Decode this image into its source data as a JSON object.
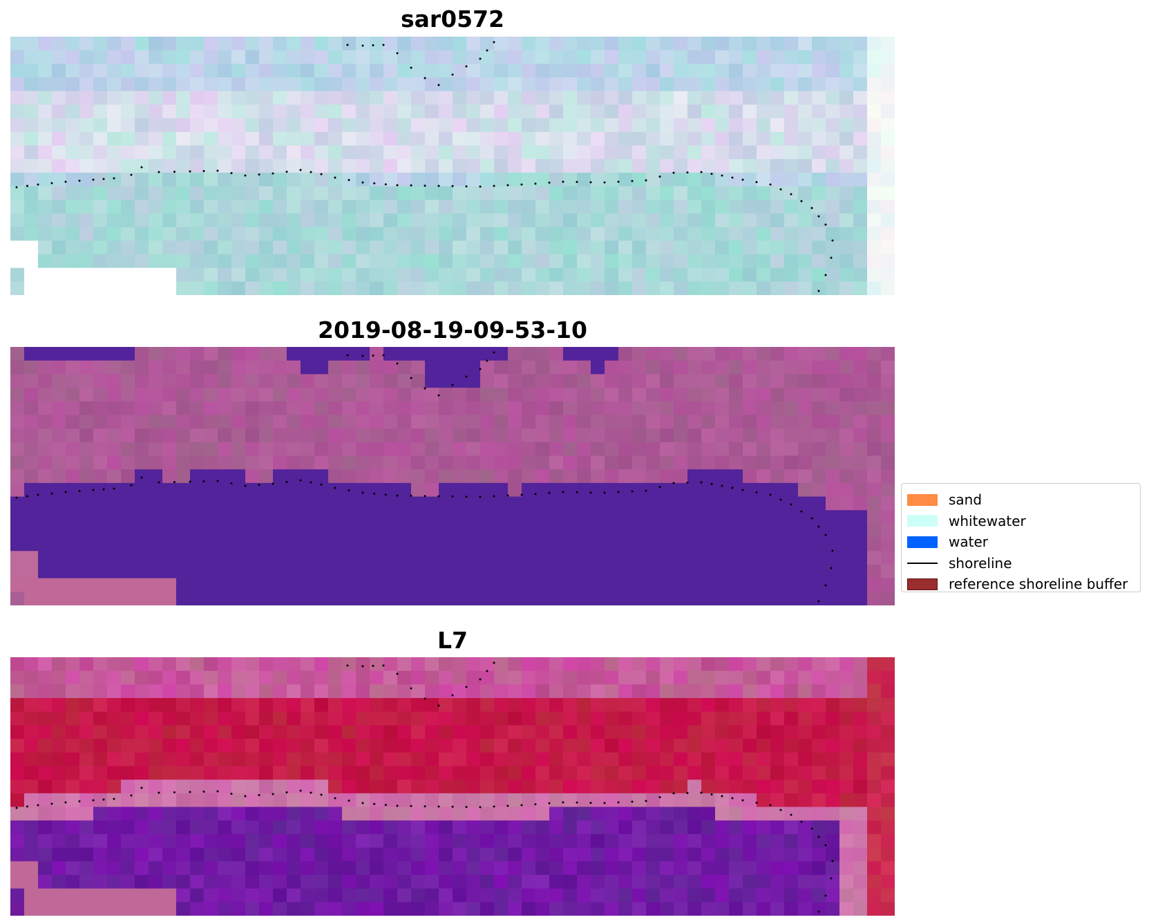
{
  "figure": {
    "panels": [
      {
        "title": "sar0572",
        "style": "rgb"
      },
      {
        "title": "2019-08-19-09-53-10",
        "style": "classified"
      },
      {
        "title": "L7",
        "style": "index"
      }
    ],
    "legend": {
      "items": [
        {
          "label": "sand",
          "kind": "patch",
          "color": "#ff8c42"
        },
        {
          "label": "whitewater",
          "kind": "patch",
          "color": "#ccfff8"
        },
        {
          "label": "water",
          "kind": "patch",
          "color": "#0061ff"
        },
        {
          "label": "shoreline",
          "kind": "line",
          "color": "#000000"
        },
        {
          "label": "reference shoreline buffer",
          "kind": "patch",
          "color": "#9a2d2d"
        }
      ]
    }
  }
}
